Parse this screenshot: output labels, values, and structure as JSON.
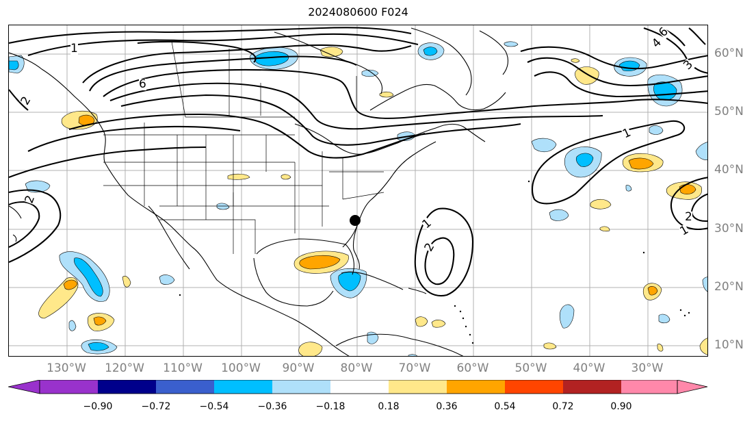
{
  "title": "2024080600 F024",
  "lon_labels": [
    "130°W",
    "120°W",
    "110°W",
    "100°W",
    "90°W",
    "80°W",
    "70°W",
    "60°W",
    "50°W",
    "40°W",
    "30°W"
  ],
  "lat_labels": [
    "60°N",
    "50°N",
    "40°N",
    "30°N",
    "20°N",
    "10°N"
  ],
  "contour_labels": {
    "c1": "1",
    "c2": "2",
    "c6": "6",
    "c4": "4",
    "c3": "3"
  },
  "colorbar": {
    "ticks": [
      "−0.90",
      "−0.72",
      "−0.54",
      "−0.36",
      "−0.18",
      "0.18",
      "0.36",
      "0.54",
      "0.72",
      "0.90"
    ],
    "colors": [
      "#9932cc",
      "#00008b",
      "#3a5fcd",
      "#00bfff",
      "#afe0fa",
      "#ffffff",
      "#ffe88a",
      "#ffa500",
      "#ff4500",
      "#b22222",
      "#ff88aa"
    ]
  },
  "fill_colors": {
    "light_blue": "#afe0fa",
    "blue": "#00bfff",
    "yellow": "#ffe88a",
    "orange": "#ffa500"
  }
}
